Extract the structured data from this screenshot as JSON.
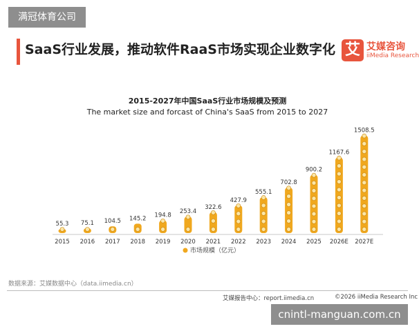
{
  "overlay": {
    "top_tag": "满冠体育公司",
    "watermark": "cnintl-manguan.com.cn"
  },
  "header": {
    "headline": "SaaS行业发展，推动软件RaaS市场实现企业数字化"
  },
  "logo": {
    "glyph": "艾",
    "name_cn": "艾媒咨询",
    "name_en": "iiMedia Research",
    "color": "#e8553d"
  },
  "chart_data": {
    "type": "bar",
    "title": "2015-2027年中国SaaS行业市场规模及预测",
    "subtitle": "The market size and forcast of China's SaaS from 2015 to 2027",
    "categories": [
      "2015",
      "2016",
      "2017",
      "2018",
      "2019",
      "2020",
      "2021",
      "2022",
      "2023",
      "2024",
      "2025",
      "2026E",
      "2027E"
    ],
    "series": [
      {
        "name": "市场规模（亿元）",
        "values": [
          55.3,
          75.1,
          104.5,
          145.2,
          194.8,
          253.4,
          322.6,
          427.9,
          555.1,
          702.8,
          900.2,
          1167.6,
          1508.5
        ],
        "color": "#f0a81e"
      }
    ],
    "ylim": [
      0,
      1600
    ],
    "grid": false,
    "legend_position": "bottom"
  },
  "footer": {
    "source": "数据来源：艾媒数据中心（data.iimedia.cn）",
    "report_center": "艾媒报告中心：report.iimedia.cn",
    "copyright": "©2026  iiMedia Research  Inc"
  }
}
